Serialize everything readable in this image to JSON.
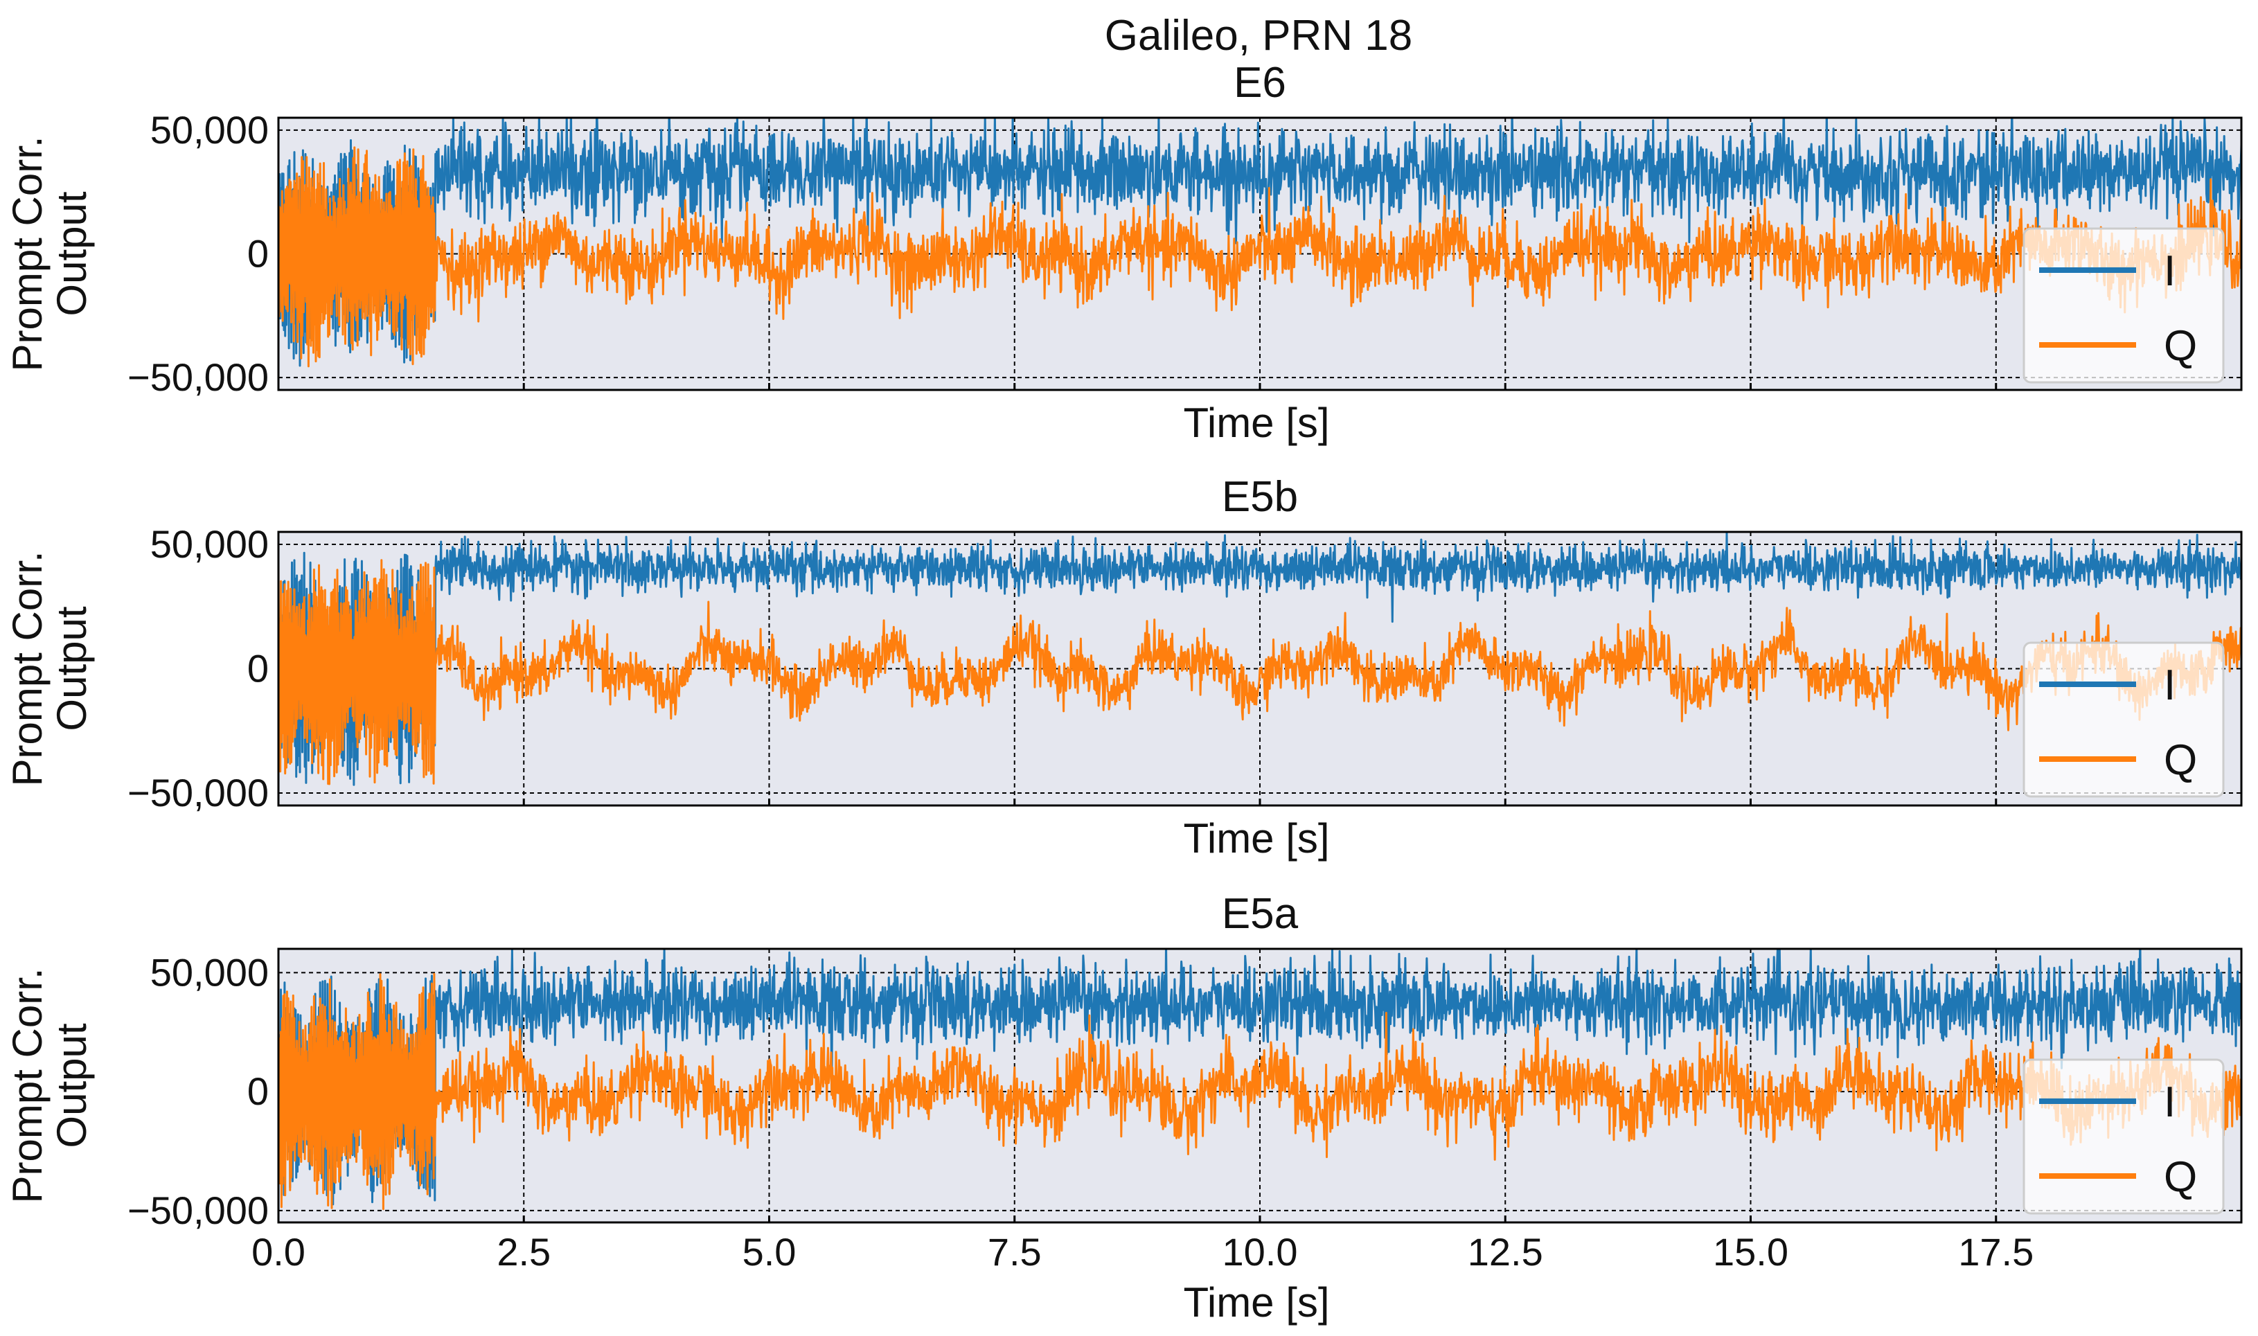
{
  "chart_data": {
    "type": "line",
    "title": "Galileo, PRN 18",
    "xlim": [
      0,
      20
    ],
    "x_ticks": [
      0.0,
      2.5,
      5.0,
      7.5,
      10.0,
      12.5,
      15.0,
      17.5
    ],
    "x_tick_labels": [
      "0.0",
      "2.5",
      "5.0",
      "7.5",
      "10.0",
      "12.5",
      "15.0",
      "17.5"
    ],
    "x_tick_labels_visible_on": "bottom panel only",
    "xlabel": "Time [s]",
    "ylabel_lines": [
      "Prompt Corr.",
      "Output"
    ],
    "legend": {
      "entries": [
        "I",
        "Q"
      ],
      "placement": "right"
    },
    "colors": {
      "I": "#1f77b4",
      "Q": "#ff7f0e",
      "plot_background": "#e5e7ef",
      "grid": "#000000"
    },
    "panels": [
      {
        "title": "E6",
        "ylim": [
          -55000,
          55000
        ],
        "y_ticks": [
          50000,
          0,
          -50000
        ],
        "y_tick_labels": [
          "50,000",
          "0",
          "−50,000"
        ],
        "series": [
          {
            "name": "I",
            "acquisition_end_s": 1.6,
            "acq_amplitude": 46000,
            "tracking_mean": 33000,
            "tracking_noise": 8500
          },
          {
            "name": "Q",
            "acquisition_end_s": 1.6,
            "acq_amplitude": 46000,
            "tracking_mean": 0,
            "tracking_noise": 7000,
            "slow_oscillation": 8000
          }
        ]
      },
      {
        "title": "E5b",
        "ylim": [
          -55000,
          55000
        ],
        "y_ticks": [
          50000,
          0,
          -50000
        ],
        "y_tick_labels": [
          "50,000",
          "0",
          "−50,000"
        ],
        "series": [
          {
            "name": "I",
            "acquisition_end_s": 1.6,
            "acq_amplitude": 47000,
            "tracking_mean": 40500,
            "tracking_noise": 4500
          },
          {
            "name": "Q",
            "acquisition_end_s": 1.6,
            "acq_amplitude": 47000,
            "tracking_mean": 0,
            "tracking_noise": 5000,
            "slow_oscillation": 11000
          }
        ]
      },
      {
        "title": "E5a",
        "ylim": [
          -55000,
          60000
        ],
        "y_ticks": [
          50000,
          0,
          -50000
        ],
        "y_tick_labels": [
          "50,000",
          "0",
          "−50,000"
        ],
        "series": [
          {
            "name": "I",
            "acquisition_end_s": 1.6,
            "acq_amplitude": 50000,
            "tracking_mean": 37000,
            "tracking_noise": 8000
          },
          {
            "name": "Q",
            "acquisition_end_s": 1.6,
            "acq_amplitude": 50000,
            "tracking_mean": 0,
            "tracking_noise": 7000,
            "slow_oscillation": 11000
          }
        ]
      }
    ]
  }
}
